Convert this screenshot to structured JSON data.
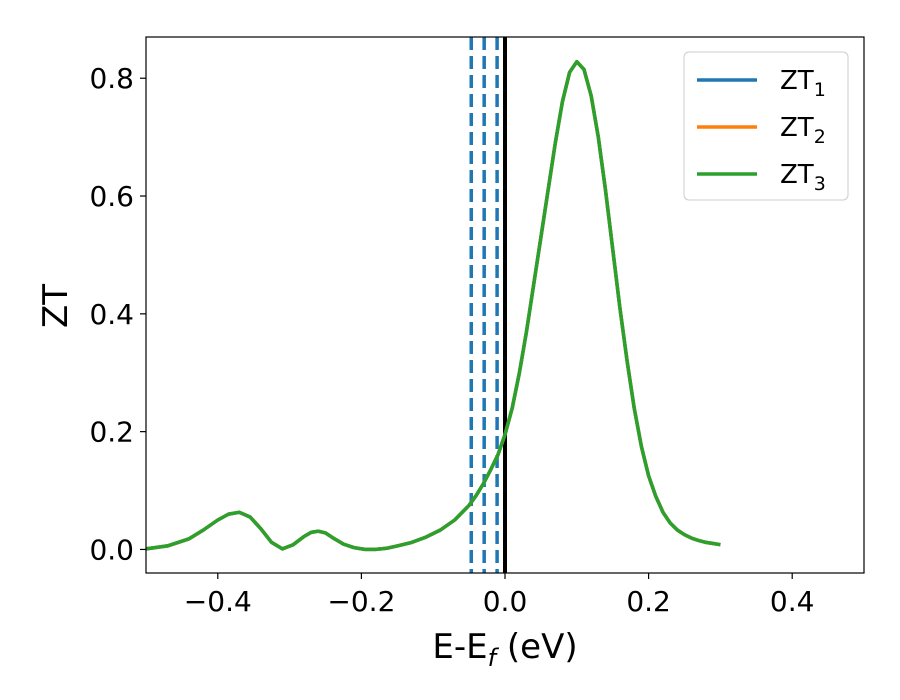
{
  "chart_data": {
    "type": "line",
    "title": "",
    "xlabel": "E-E",
    "xlabel_sub": "f",
    "xlabel_suffix": " (eV)",
    "ylabel": "ZT",
    "xlim": [
      -0.5,
      0.5
    ],
    "ylim": [
      -0.04,
      0.87
    ],
    "grid": false,
    "legend_position": "top-right",
    "x_ticks": [
      {
        "value": -0.4,
        "label": "−0.4"
      },
      {
        "value": -0.2,
        "label": "−0.2"
      },
      {
        "value": 0.0,
        "label": "0.0"
      },
      {
        "value": 0.2,
        "label": "0.2"
      },
      {
        "value": 0.4,
        "label": "0.4"
      }
    ],
    "y_ticks": [
      {
        "value": 0.0,
        "label": "0.0"
      },
      {
        "value": 0.2,
        "label": "0.2"
      },
      {
        "value": 0.4,
        "label": "0.4"
      },
      {
        "value": 0.6,
        "label": "0.6"
      },
      {
        "value": 0.8,
        "label": "0.8"
      }
    ],
    "x": [
      -0.5,
      -0.47,
      -0.44,
      -0.42,
      -0.4,
      -0.385,
      -0.37,
      -0.355,
      -0.34,
      -0.325,
      -0.31,
      -0.295,
      -0.28,
      -0.27,
      -0.26,
      -0.25,
      -0.24,
      -0.225,
      -0.21,
      -0.195,
      -0.18,
      -0.165,
      -0.15,
      -0.13,
      -0.11,
      -0.09,
      -0.07,
      -0.05,
      -0.04,
      -0.03,
      -0.02,
      -0.01,
      0.0,
      0.01,
      0.02,
      0.03,
      0.04,
      0.05,
      0.06,
      0.07,
      0.08,
      0.09,
      0.1,
      0.11,
      0.12,
      0.13,
      0.14,
      0.15,
      0.16,
      0.17,
      0.18,
      0.19,
      0.2,
      0.21,
      0.22,
      0.23,
      0.24,
      0.25,
      0.26,
      0.27,
      0.28,
      0.29,
      0.3
    ],
    "series": [
      {
        "name": "ZT",
        "name_sub": "1",
        "color": "#1f77b4",
        "values": [
          0.001,
          0.006,
          0.018,
          0.033,
          0.05,
          0.06,
          0.063,
          0.055,
          0.035,
          0.012,
          0.001,
          0.008,
          0.022,
          0.029,
          0.031,
          0.028,
          0.02,
          0.009,
          0.003,
          0.0,
          0.0,
          0.002,
          0.006,
          0.012,
          0.021,
          0.033,
          0.05,
          0.075,
          0.092,
          0.112,
          0.135,
          0.16,
          0.195,
          0.24,
          0.3,
          0.37,
          0.45,
          0.53,
          0.61,
          0.69,
          0.76,
          0.81,
          0.828,
          0.815,
          0.77,
          0.7,
          0.61,
          0.51,
          0.41,
          0.32,
          0.24,
          0.175,
          0.125,
          0.09,
          0.063,
          0.045,
          0.033,
          0.025,
          0.019,
          0.015,
          0.012,
          0.01,
          0.008
        ]
      },
      {
        "name": "ZT",
        "name_sub": "2",
        "color": "#ff7f0e",
        "values": [
          0.001,
          0.006,
          0.018,
          0.033,
          0.05,
          0.06,
          0.063,
          0.055,
          0.035,
          0.012,
          0.001,
          0.008,
          0.022,
          0.029,
          0.031,
          0.028,
          0.02,
          0.009,
          0.003,
          0.0,
          0.0,
          0.002,
          0.006,
          0.012,
          0.021,
          0.033,
          0.05,
          0.075,
          0.092,
          0.112,
          0.135,
          0.16,
          0.195,
          0.24,
          0.3,
          0.37,
          0.45,
          0.53,
          0.61,
          0.69,
          0.76,
          0.81,
          0.828,
          0.815,
          0.77,
          0.7,
          0.61,
          0.51,
          0.41,
          0.32,
          0.24,
          0.175,
          0.125,
          0.09,
          0.063,
          0.045,
          0.033,
          0.025,
          0.019,
          0.015,
          0.012,
          0.01,
          0.008
        ]
      },
      {
        "name": "ZT",
        "name_sub": "3",
        "color": "#2ca02c",
        "values": [
          0.001,
          0.006,
          0.018,
          0.033,
          0.05,
          0.06,
          0.063,
          0.055,
          0.035,
          0.012,
          0.001,
          0.008,
          0.022,
          0.029,
          0.031,
          0.028,
          0.02,
          0.009,
          0.003,
          0.0,
          0.0,
          0.002,
          0.006,
          0.012,
          0.021,
          0.033,
          0.05,
          0.075,
          0.092,
          0.112,
          0.135,
          0.16,
          0.195,
          0.24,
          0.3,
          0.37,
          0.45,
          0.53,
          0.61,
          0.69,
          0.76,
          0.81,
          0.828,
          0.815,
          0.77,
          0.7,
          0.61,
          0.51,
          0.41,
          0.32,
          0.24,
          0.175,
          0.125,
          0.09,
          0.063,
          0.045,
          0.033,
          0.025,
          0.019,
          0.015,
          0.012,
          0.01,
          0.008
        ]
      }
    ],
    "vlines": [
      {
        "x": -0.047,
        "style": "dashed",
        "color": "#1f77b4"
      },
      {
        "x": -0.029,
        "style": "dashed",
        "color": "#1f77b4"
      },
      {
        "x": -0.011,
        "style": "dashed",
        "color": "#1f77b4"
      },
      {
        "x": 0.0,
        "style": "solid",
        "color": "#000000"
      }
    ]
  }
}
